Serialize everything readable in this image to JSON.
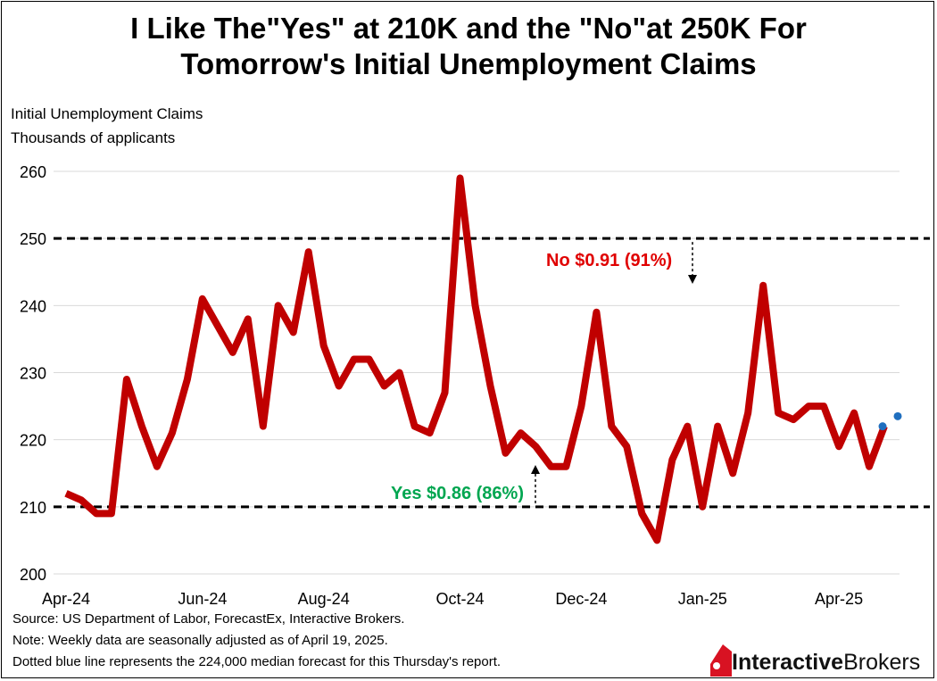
{
  "title_line1": "I Like The\"Yes\" at 210K and the \"No\"at 250K For",
  "title_line2": "Tomorrow's Initial Unemployment Claims",
  "ylabel_line1": "Initial Unemployment Claims",
  "ylabel_line2": "Thousands of applicants",
  "notes": [
    "Source: US Department of Labor, ForecastEx, Interactive Brokers.",
    "Note: Weekly data are seasonally adjusted as of April 19, 2025.",
    "Dotted blue line represents the 224,000 median forecast for this Thursday's report."
  ],
  "logo": {
    "bold": "Interactive",
    "normal": "Brokers",
    "color": "#d81222"
  },
  "chart_data": {
    "type": "line",
    "title": "I Like The\"Yes\" at 210K and the \"No\"at 250K For Tomorrow's Initial Unemployment Claims",
    "ylabel": "Initial Unemployment Claims, Thousands of applicants",
    "ylim": [
      200,
      260
    ],
    "yticks": [
      200,
      210,
      220,
      230,
      240,
      250,
      260
    ],
    "xtick_labels": [
      "Apr-24",
      "Jun-24",
      "Aug-24",
      "Oct-24",
      "Dec-24",
      "Jan-25",
      "Apr-25"
    ],
    "xtick_index": [
      0,
      9,
      17,
      26,
      34,
      42,
      51
    ],
    "grid": true,
    "series": [
      {
        "color": "#c00000",
        "values": [
          212,
          211,
          209,
          209,
          229,
          222,
          216,
          221,
          229,
          241,
          237,
          233,
          238,
          222,
          240,
          236,
          248,
          234,
          228,
          232,
          232,
          228,
          230,
          222,
          221,
          227,
          259,
          240,
          228,
          218,
          221,
          219,
          216,
          216,
          225,
          239,
          222,
          219,
          209,
          205,
          217,
          222,
          210,
          222,
          215,
          224,
          243,
          224,
          223,
          225,
          225,
          219,
          224,
          216,
          222
        ]
      },
      {
        "color": "#1f6fbf",
        "style": "dotted",
        "values": [
          [
            54,
            222
          ],
          [
            55,
            223.5
          ]
        ]
      }
    ],
    "hlines": [
      {
        "y": 250,
        "style": "dashed",
        "color": "#000000"
      },
      {
        "y": 210,
        "style": "dashed",
        "color": "#000000"
      }
    ],
    "annotations": [
      {
        "text": "No $0.91 (91%)",
        "color": "#e00000",
        "anchor_y": 250,
        "direction": "down"
      },
      {
        "text": "Yes $0.86 (86%)",
        "color": "#00a650",
        "anchor_y": 210,
        "direction": "up"
      }
    ]
  }
}
